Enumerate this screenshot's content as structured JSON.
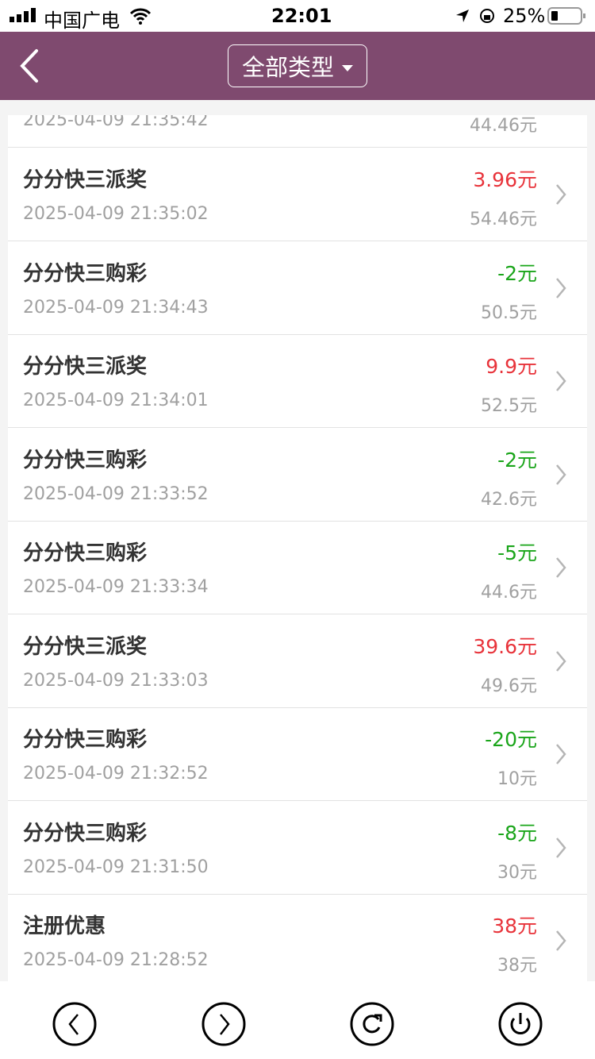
{
  "status_bar": {
    "carrier": "中国广电",
    "time": "22:01",
    "battery": "25%"
  },
  "header": {
    "filter_label": "全部类型"
  },
  "partial_row": {
    "date": "2025-04-09 21:35:42",
    "balance": "44.46元"
  },
  "rows": [
    {
      "title": "分分快三派奖",
      "date": "2025-04-09 21:35:02",
      "amount": "3.96元",
      "balance": "54.46元",
      "type": "credit"
    },
    {
      "title": "分分快三购彩",
      "date": "2025-04-09 21:34:43",
      "amount": "-2元",
      "balance": "50.5元",
      "type": "debit"
    },
    {
      "title": "分分快三派奖",
      "date": "2025-04-09 21:34:01",
      "amount": "9.9元",
      "balance": "52.5元",
      "type": "credit"
    },
    {
      "title": "分分快三购彩",
      "date": "2025-04-09 21:33:52",
      "amount": "-2元",
      "balance": "42.6元",
      "type": "debit"
    },
    {
      "title": "分分快三购彩",
      "date": "2025-04-09 21:33:34",
      "amount": "-5元",
      "balance": "44.6元",
      "type": "debit"
    },
    {
      "title": "分分快三派奖",
      "date": "2025-04-09 21:33:03",
      "amount": "39.6元",
      "balance": "49.6元",
      "type": "credit"
    },
    {
      "title": "分分快三购彩",
      "date": "2025-04-09 21:32:52",
      "amount": "-20元",
      "balance": "10元",
      "type": "debit"
    },
    {
      "title": "分分快三购彩",
      "date": "2025-04-09 21:31:50",
      "amount": "-8元",
      "balance": "30元",
      "type": "debit"
    },
    {
      "title": "注册优惠",
      "date": "2025-04-09 21:28:52",
      "amount": "38元",
      "balance": "38元",
      "type": "credit"
    }
  ],
  "colors": {
    "header": "#7f4a6f",
    "credit": "#e8333a",
    "debit": "#1aa51a"
  },
  "bottom_bar": {
    "icons": [
      "chevron-left-circle-icon",
      "chevron-right-circle-icon",
      "refresh-circle-icon",
      "power-circle-icon"
    ]
  }
}
